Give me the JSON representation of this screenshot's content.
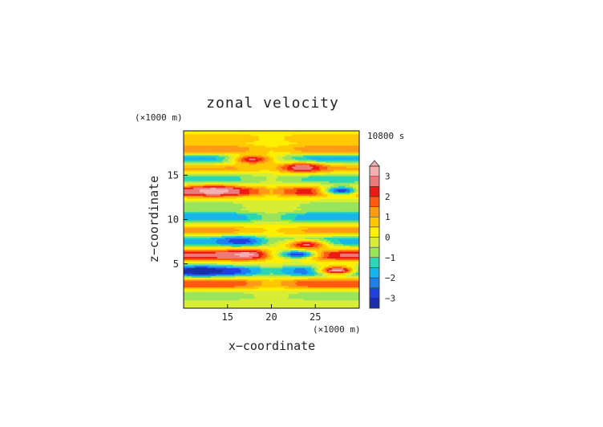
{
  "chart_data": {
    "type": "heatmap",
    "title": "zonal velocity",
    "xlabel": "x−coordinate",
    "ylabel": "z−coordinate",
    "x_unit_label": "(×1000 m)",
    "y_unit_label": "(×1000 m)",
    "time_label": "10800 s",
    "xlim": [
      10,
      30
    ],
    "ylim": [
      0,
      20
    ],
    "xticks": [
      15,
      20,
      25
    ],
    "yticks": [
      5,
      10,
      15
    ],
    "colorbar": {
      "ticks": [
        -3,
        -2,
        -1,
        0,
        1,
        2,
        3
      ],
      "levels": [
        -3.5,
        -3,
        -2.5,
        -2,
        -1.5,
        -1,
        -0.5,
        0,
        0.5,
        1,
        1.5,
        2,
        2.5,
        3,
        3.5
      ],
      "colors": [
        "#202878",
        "#1c2ea8",
        "#2040e0",
        "#1e7ef0",
        "#18b4ec",
        "#2ad6b4",
        "#9ae45c",
        "#d8ee34",
        "#fff000",
        "#ffc800",
        "#ff9a18",
        "#ff5a10",
        "#ec1a14",
        "#ec7a7a",
        "#f4b0b0"
      ],
      "extend_max": true
    },
    "grid": false,
    "bands": [
      {
        "z": 19.2,
        "u": 0.9,
        "note": "top"
      },
      {
        "z": 17.9,
        "u": 1.4
      },
      {
        "z": 16.8,
        "u": -2.0
      },
      {
        "z": 15.9,
        "u": 1.2
      },
      {
        "z": 14.6,
        "u": -1.2
      },
      {
        "z": 13.2,
        "u": 2.7
      },
      {
        "z": 11.6,
        "u": -0.6
      },
      {
        "z": 10.3,
        "u": -2.0
      },
      {
        "z": 8.7,
        "u": 1.2
      },
      {
        "z": 7.6,
        "u": -1.8
      },
      {
        "z": 6.0,
        "u": 2.6
      },
      {
        "z": 4.2,
        "u": -2.9
      },
      {
        "z": 2.8,
        "u": 2.0
      },
      {
        "z": 1.4,
        "u": -0.8
      }
    ],
    "features": [
      {
        "x": 13.4,
        "z": 13.3,
        "u": 3.2
      },
      {
        "x": 28.0,
        "z": 13.3,
        "u": -2.9
      },
      {
        "x": 17.2,
        "z": 6.1,
        "u": 3.2
      },
      {
        "x": 23.0,
        "z": 6.1,
        "u": -3.0
      },
      {
        "x": 17.8,
        "z": 16.8,
        "u": 2.6
      },
      {
        "x": 23.5,
        "z": 15.9,
        "u": 3.0
      },
      {
        "x": 27.5,
        "z": 4.3,
        "u": 3.3
      },
      {
        "x": 12.0,
        "z": 4.2,
        "u": -3.2
      },
      {
        "x": 16.5,
        "z": 7.6,
        "u": -2.8
      },
      {
        "x": 24.0,
        "z": 7.2,
        "u": 2.6
      }
    ]
  }
}
